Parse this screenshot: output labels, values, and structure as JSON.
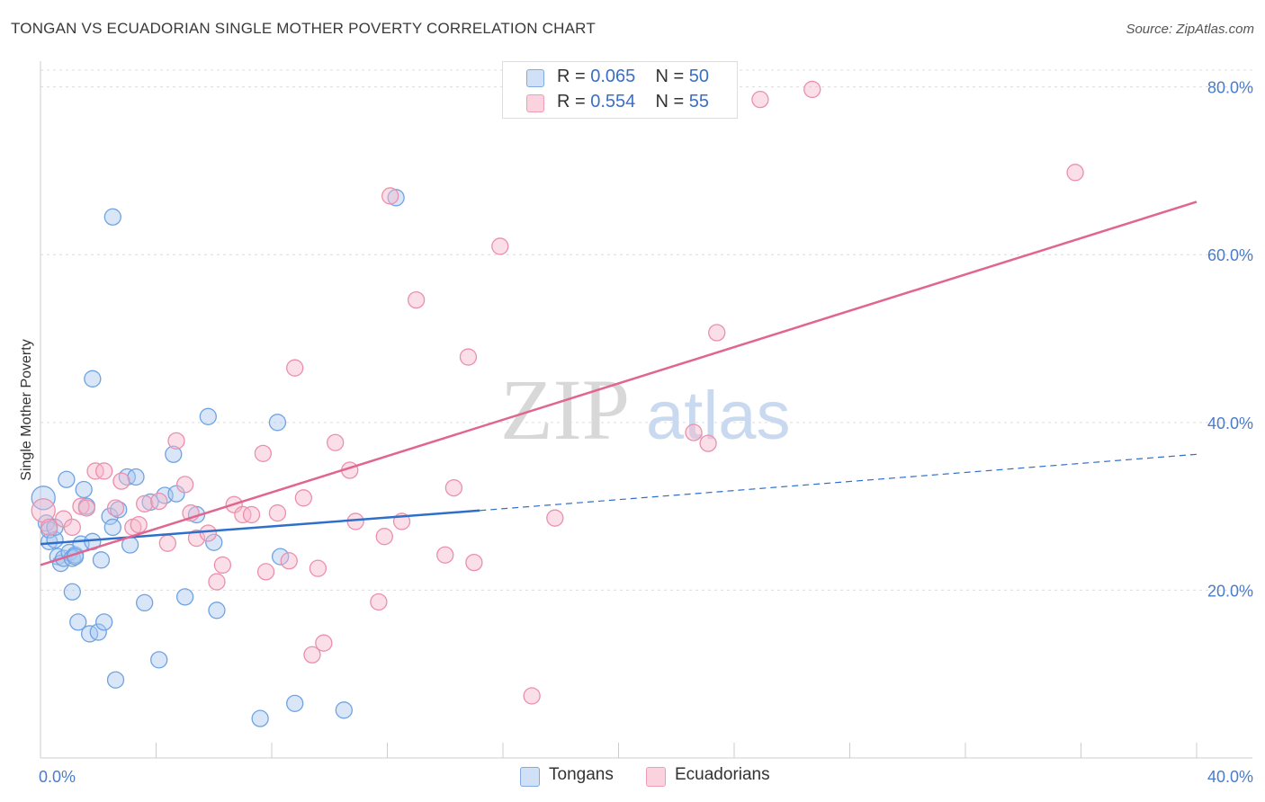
{
  "header": {
    "title": "TONGAN VS ECUADORIAN SINGLE MOTHER POVERTY CORRELATION CHART",
    "source": "Source: ZipAtlas.com"
  },
  "watermark": {
    "zip": "ZIP",
    "atlas": "atlas"
  },
  "legend": {
    "rows": [
      {
        "r_label": "R = ",
        "r_value": "0.065",
        "n_label": "N = ",
        "n_value": "50",
        "color": "#a9c8f0"
      },
      {
        "r_label": "R = ",
        "r_value": "0.554",
        "n_label": "N = ",
        "n_value": "55",
        "color": "#f6b8cb"
      }
    ]
  },
  "bottom_legend": [
    {
      "label": "Tongans",
      "color": "#a9c8f0"
    },
    {
      "label": "Ecuadorians",
      "color": "#f6b8cb"
    }
  ],
  "chart_data": {
    "type": "scatter",
    "title": "TONGAN VS ECUADORIAN SINGLE MOTHER POVERTY CORRELATION CHART",
    "xlabel": "",
    "ylabel": "Single Mother Poverty",
    "xlim": [
      0,
      40
    ],
    "ylim": [
      0,
      82
    ],
    "x_tick_labels": [
      "0.0%",
      "40.0%"
    ],
    "y_ticks": [
      20,
      40,
      60,
      80
    ],
    "y_tick_labels": [
      "20.0%",
      "40.0%",
      "60.0%",
      "80.0%"
    ],
    "grid": true,
    "legend_position": "top-center",
    "series": [
      {
        "name": "Tongans",
        "color": "#6fa3e3",
        "fill": "#a9c8f0",
        "trend": {
          "x": [
            0,
            15.2
          ],
          "y": [
            25.5,
            29.5
          ],
          "dashed_to": [
            40,
            36.2
          ],
          "color": "#2f6fcc"
        },
        "points": [
          [
            0.1,
            31.0
          ],
          [
            0.2,
            28.0
          ],
          [
            0.3,
            25.8
          ],
          [
            0.3,
            27.2
          ],
          [
            0.5,
            26.0
          ],
          [
            0.6,
            24.0
          ],
          [
            0.7,
            23.2
          ],
          [
            0.8,
            23.8
          ],
          [
            0.9,
            33.2
          ],
          [
            1.0,
            24.5
          ],
          [
            1.1,
            19.8
          ],
          [
            1.1,
            23.8
          ],
          [
            1.2,
            24.2
          ],
          [
            1.3,
            16.2
          ],
          [
            1.4,
            25.5
          ],
          [
            1.5,
            32.0
          ],
          [
            1.6,
            30.0
          ],
          [
            1.7,
            14.8
          ],
          [
            1.8,
            45.2
          ],
          [
            1.8,
            25.8
          ],
          [
            2.0,
            15.0
          ],
          [
            2.1,
            23.6
          ],
          [
            2.2,
            16.2
          ],
          [
            2.4,
            28.8
          ],
          [
            2.5,
            27.5
          ],
          [
            2.5,
            64.5
          ],
          [
            2.6,
            9.3
          ],
          [
            2.7,
            29.6
          ],
          [
            3.1,
            25.4
          ],
          [
            3.0,
            33.5
          ],
          [
            3.3,
            33.5
          ],
          [
            3.6,
            18.5
          ],
          [
            3.8,
            30.5
          ],
          [
            4.1,
            11.7
          ],
          [
            4.3,
            31.3
          ],
          [
            4.6,
            36.2
          ],
          [
            4.7,
            31.5
          ],
          [
            5.0,
            19.2
          ],
          [
            5.4,
            29.0
          ],
          [
            5.8,
            40.7
          ],
          [
            6.0,
            25.7
          ],
          [
            6.1,
            17.6
          ],
          [
            7.6,
            4.7
          ],
          [
            8.2,
            40.0
          ],
          [
            8.3,
            24.0
          ],
          [
            8.8,
            6.5
          ],
          [
            10.5,
            5.7
          ],
          [
            12.3,
            66.8
          ],
          [
            0.5,
            27.5
          ],
          [
            1.2,
            24.0
          ]
        ]
      },
      {
        "name": "Ecuadorians",
        "color": "#ec8fab",
        "fill": "#f6b8cb",
        "trend": {
          "x": [
            0,
            40
          ],
          "y": [
            23.0,
            66.3
          ],
          "color": "#e0658f"
        },
        "points": [
          [
            0.1,
            29.5
          ],
          [
            0.3,
            27.5
          ],
          [
            0.8,
            28.5
          ],
          [
            1.1,
            27.5
          ],
          [
            1.4,
            30.0
          ],
          [
            1.6,
            29.8
          ],
          [
            1.9,
            34.2
          ],
          [
            2.2,
            34.2
          ],
          [
            2.6,
            29.8
          ],
          [
            2.8,
            33.0
          ],
          [
            3.2,
            27.5
          ],
          [
            3.4,
            27.8
          ],
          [
            3.6,
            30.3
          ],
          [
            4.1,
            30.6
          ],
          [
            4.4,
            25.6
          ],
          [
            4.7,
            37.8
          ],
          [
            5.0,
            32.6
          ],
          [
            5.2,
            29.2
          ],
          [
            5.4,
            26.2
          ],
          [
            5.8,
            26.8
          ],
          [
            6.1,
            21.0
          ],
          [
            6.3,
            23.0
          ],
          [
            6.7,
            30.2
          ],
          [
            7.0,
            29.0
          ],
          [
            7.3,
            29.0
          ],
          [
            7.7,
            36.3
          ],
          [
            7.8,
            22.2
          ],
          [
            8.2,
            29.2
          ],
          [
            8.6,
            23.5
          ],
          [
            8.8,
            46.5
          ],
          [
            9.1,
            31.0
          ],
          [
            9.4,
            12.3
          ],
          [
            9.6,
            22.6
          ],
          [
            9.8,
            13.7
          ],
          [
            10.2,
            37.6
          ],
          [
            10.7,
            34.3
          ],
          [
            10.9,
            28.2
          ],
          [
            11.7,
            18.6
          ],
          [
            11.9,
            26.4
          ],
          [
            12.1,
            67.0
          ],
          [
            12.5,
            28.2
          ],
          [
            13.0,
            54.6
          ],
          [
            14.0,
            24.2
          ],
          [
            14.3,
            32.2
          ],
          [
            14.8,
            47.8
          ],
          [
            15.0,
            23.3
          ],
          [
            15.9,
            61.0
          ],
          [
            17.0,
            7.4
          ],
          [
            17.8,
            28.6
          ],
          [
            22.6,
            38.8
          ],
          [
            23.1,
            37.5
          ],
          [
            23.4,
            50.7
          ],
          [
            24.9,
            78.5
          ],
          [
            26.7,
            79.7
          ],
          [
            35.8,
            69.8
          ]
        ]
      }
    ]
  }
}
